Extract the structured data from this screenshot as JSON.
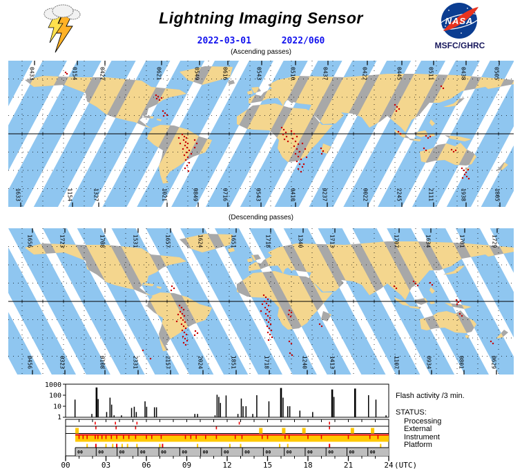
{
  "header": {
    "title": "Lightning Imaging Sensor",
    "date_iso": "2022-03-01",
    "date_doy": "2022/060",
    "caption_ascending": "(Ascending passes)",
    "caption_descending": "(Descending passes)",
    "nasa_text": "NASA",
    "org": "MSFC/GHRC"
  },
  "colors": {
    "swath_blue": "#8FC6F0",
    "swath_tan": "#F4D68E",
    "land_gray": "#A8A8A8",
    "flash_red": "#C80000",
    "status_yellow": "#FFC800",
    "status_red": "#EE0000",
    "platform_gray": "#BEBEBE",
    "date_blue": "#1111EE",
    "nasa_blue": "#0B3D91",
    "nasa_red": "#E8331F"
  },
  "maps": {
    "ascending": {
      "name": "Ascending passes",
      "stripe_angle": 28,
      "top_labels": [
        [
          "0433",
          38
        ],
        [
          "0154",
          100
        ],
        [
          "0427",
          140
        ],
        [
          "0621",
          222
        ],
        [
          "0549",
          277
        ],
        [
          "0616",
          318
        ],
        [
          "0543",
          367
        ],
        [
          "0510",
          416
        ],
        [
          "0437",
          463
        ],
        [
          "0422",
          520
        ],
        [
          "0445",
          570
        ],
        [
          "0511",
          616
        ],
        [
          "0438",
          663
        ],
        [
          "0505",
          711
        ]
      ],
      "bottom_labels": [
        [
          "1633",
          18
        ],
        [
          "1154",
          93
        ],
        [
          "1327",
          131
        ],
        [
          "1021",
          230
        ],
        [
          "0849",
          275
        ],
        [
          "0716",
          318
        ],
        [
          "0543",
          366
        ],
        [
          "0410",
          416
        ],
        [
          "0237",
          462
        ],
        [
          "0022",
          521
        ],
        [
          "2245",
          570
        ],
        [
          "2111",
          616
        ],
        [
          "1938",
          663
        ],
        [
          "1805",
          712
        ]
      ],
      "flash_dots": [
        214,
        50,
        217,
        52,
        215,
        55,
        219,
        57,
        222,
        54,
        83,
        17,
        85,
        19,
        224,
        73,
        227,
        76,
        230,
        79,
        225,
        80,
        252,
        107,
        255,
        110,
        258,
        112,
        254,
        115,
        257,
        118,
        260,
        120,
        256,
        123,
        259,
        126,
        253,
        128,
        262,
        130,
        258,
        133,
        255,
        137,
        260,
        140,
        257,
        144,
        262,
        148,
        259,
        152,
        256,
        156,
        261,
        160,
        247,
        112,
        249,
        120,
        270,
        115,
        273,
        120,
        270,
        126,
        265,
        135,
        396,
        97,
        399,
        100,
        402,
        104,
        398,
        107,
        403,
        110,
        400,
        114,
        405,
        117,
        410,
        102,
        414,
        106,
        418,
        110,
        412,
        113,
        416,
        117,
        420,
        121,
        414,
        124,
        418,
        128,
        422,
        132,
        416,
        135,
        420,
        139,
        424,
        143,
        418,
        146,
        422,
        150,
        426,
        154,
        420,
        157,
        424,
        161,
        428,
        150,
        430,
        128,
        426,
        120,
        432,
        140,
        453,
        127,
        456,
        131,
        454,
        135,
        560,
        64,
        563,
        67,
        566,
        70,
        562,
        73,
        627,
        37,
        630,
        40,
        565,
        103,
        568,
        106,
        605,
        109,
        608,
        112,
        611,
        110,
        602,
        127,
        605,
        130,
        642,
        129,
        645,
        132,
        648,
        130,
        657,
        156,
        660,
        159,
        663,
        162,
        666,
        158,
        661,
        165,
        664,
        168,
        658,
        170,
        667,
        171
      ]
    },
    "descending": {
      "name": "Descending passes",
      "stripe_angle": -28,
      "top_labels": [
        [
          "1656",
          35
        ],
        [
          "1723",
          82
        ],
        [
          "1708",
          140
        ],
        [
          "1531",
          188
        ],
        [
          "1657",
          235
        ],
        [
          "1624",
          282
        ],
        [
          "1651",
          330
        ],
        [
          "1718",
          380
        ],
        [
          "1340",
          427
        ],
        [
          "1713",
          473
        ],
        [
          "1707",
          566
        ],
        [
          "1634",
          612
        ],
        [
          "1701",
          661
        ],
        [
          "1729",
          708
        ]
      ],
      "bottom_labels": [
        [
          "0456",
          35
        ],
        [
          "0323",
          82
        ],
        [
          "0108",
          140
        ],
        [
          "2331",
          188
        ],
        [
          "2157",
          235
        ],
        [
          "2024",
          282
        ],
        [
          "1851",
          330
        ],
        [
          "1718",
          378
        ],
        [
          "1240",
          433
        ],
        [
          "1413",
          473
        ],
        [
          "1107",
          566
        ],
        [
          "0934",
          613
        ],
        [
          "0801",
          660
        ],
        [
          "0629",
          707
        ]
      ],
      "flash_dots": [
        237,
        84,
        240,
        87,
        236,
        90,
        248,
        112,
        251,
        115,
        254,
        118,
        249,
        121,
        252,
        124,
        255,
        127,
        250,
        130,
        253,
        133,
        256,
        136,
        251,
        139,
        254,
        142,
        257,
        145,
        252,
        148,
        255,
        151,
        258,
        154,
        253,
        157,
        256,
        160,
        259,
        163,
        254,
        166,
        257,
        169,
        246,
        125,
        244,
        135,
        271,
        149,
        274,
        152,
        270,
        155,
        370,
        97,
        373,
        100,
        376,
        103,
        371,
        106,
        374,
        109,
        377,
        112,
        372,
        115,
        375,
        118,
        378,
        121,
        373,
        124,
        376,
        127,
        379,
        130,
        374,
        133,
        377,
        136,
        380,
        139,
        375,
        142,
        378,
        145,
        381,
        148,
        376,
        151,
        379,
        154,
        382,
        158,
        377,
        162,
        368,
        110,
        366,
        120,
        407,
        119,
        410,
        122,
        406,
        125,
        409,
        128,
        407,
        164,
        410,
        167,
        195,
        177,
        206,
        189,
        408,
        181,
        411,
        184,
        451,
        139,
        454,
        142,
        559,
        84,
        562,
        87,
        587,
        77,
        590,
        80,
        593,
        83,
        611,
        79,
        614,
        82,
        649,
        104,
        652,
        107,
        655,
        105,
        650,
        110,
        654,
        124,
        657,
        127,
        699,
        164,
        702,
        167
      ]
    }
  },
  "chart_data": {
    "type": "bar",
    "title": "Flash activity /3 min.",
    "ylog": true,
    "ylim": [
      1,
      1000
    ],
    "xlim_hours": [
      0,
      24
    ],
    "y_ticks": [
      "1000",
      "100",
      "10",
      "1"
    ],
    "x_ticks": [
      "00",
      "03",
      "06",
      "09",
      "12",
      "15",
      "18",
      "21",
      "24"
    ],
    "x_unit": "(UTC)",
    "bars": [
      [
        0.7,
        40
      ],
      [
        1.95,
        2
      ],
      [
        2.3,
        500
      ],
      [
        2.42,
        45
      ],
      [
        3.05,
        3
      ],
      [
        3.3,
        60
      ],
      [
        3.42,
        14
      ],
      [
        3.6,
        1.5
      ],
      [
        4.15,
        1.5
      ],
      [
        4.9,
        7
      ],
      [
        5.1,
        9
      ],
      [
        5.25,
        3
      ],
      [
        5.9,
        28
      ],
      [
        6.02,
        9
      ],
      [
        6.6,
        8
      ],
      [
        6.75,
        8
      ],
      [
        9.6,
        2
      ],
      [
        9.8,
        2
      ],
      [
        11.1,
        1.5
      ],
      [
        11.25,
        110
      ],
      [
        11.38,
        70
      ],
      [
        11.5,
        20
      ],
      [
        11.92,
        95
      ],
      [
        12.8,
        2
      ],
      [
        13.05,
        50
      ],
      [
        13.18,
        10
      ],
      [
        13.4,
        10
      ],
      [
        13.9,
        2
      ],
      [
        14.2,
        100
      ],
      [
        15.1,
        28
      ],
      [
        16.0,
        450
      ],
      [
        16.15,
        60
      ],
      [
        16.5,
        10
      ],
      [
        16.65,
        10
      ],
      [
        17.4,
        4
      ],
      [
        18.35,
        3
      ],
      [
        19.8,
        330
      ],
      [
        19.93,
        70
      ],
      [
        21.5,
        400
      ],
      [
        22.5,
        100
      ],
      [
        23.05,
        40
      ],
      [
        23.8,
        1.5
      ]
    ]
  },
  "status": {
    "label": "STATUS:",
    "rows": [
      {
        "name": "Processing"
      },
      {
        "name": "External"
      },
      {
        "name": "Instrument"
      },
      {
        "name": "Platform"
      }
    ],
    "processing": {
      "red_ticks": [
        2.2,
        3.7,
        5.3,
        12.9,
        19.6
      ]
    },
    "external": {
      "yellow_blobs": [
        0.85,
        14.5,
        16.2,
        17.7,
        21.3,
        22.8
      ],
      "red_ticks": [
        2.25,
        3.75,
        5.2,
        11.2,
        19.6
      ]
    },
    "instrument": {
      "band_start": 0.72,
      "band_end": 24,
      "red_ticks": [
        1.0,
        1.3,
        1.6,
        2.2,
        2.4,
        2.7,
        3.0,
        3.4,
        3.8,
        4.3,
        4.7,
        5.2,
        6.0,
        6.4,
        7.1,
        8.9,
        9.3,
        9.7,
        10.4,
        11.2,
        12.6,
        13.1,
        14.6,
        15.0,
        16.3,
        16.6,
        18.0,
        19.0,
        21.0,
        22.6,
        23.2
      ]
    },
    "platform": {
      "band_start": 0.72,
      "band_end": 24,
      "orbit_period_hours": 1.552,
      "cell_label": "00",
      "yellow_ticks": [
        1.6,
        3.0,
        3.5,
        4.2,
        4.6,
        5.3,
        7.0,
        9.8,
        12.2,
        13.0,
        15.9,
        16.5,
        23.4
      ],
      "red_ticks": [
        2.25,
        3.8,
        7.2,
        19.6
      ]
    }
  }
}
